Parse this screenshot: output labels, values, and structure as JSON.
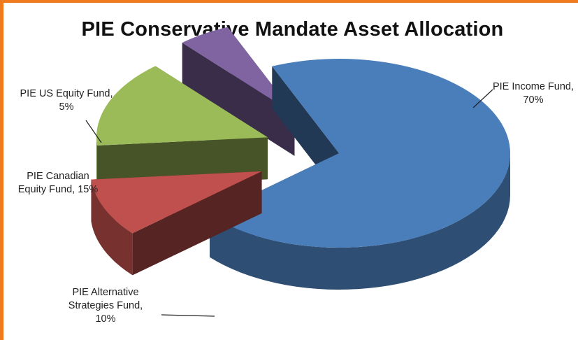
{
  "colors": {
    "accent_border": "#f07a1e"
  },
  "chart_data": {
    "type": "pie",
    "style": "3d-exploded",
    "title": "PIE Conservative Mandate Asset Allocation",
    "categories": [
      "PIE Income Fund",
      "PIE Alternative Strategies Fund",
      "PIE Canadian Equity Fund",
      "PIE US Equity Fund"
    ],
    "values": [
      70,
      10,
      15,
      5
    ],
    "colors": [
      "#4a7ebb",
      "#c0504d",
      "#9bbb59",
      "#8064a2"
    ],
    "label_lines": [
      [
        "PIE Income Fund,",
        "70%"
      ],
      [
        "PIE Alternative",
        "Strategies Fund,",
        "10%"
      ],
      [
        "PIE Canadian",
        "Equity Fund, 15%"
      ],
      [
        "PIE US Equity Fund,",
        "5%"
      ]
    ],
    "legend": "none"
  }
}
